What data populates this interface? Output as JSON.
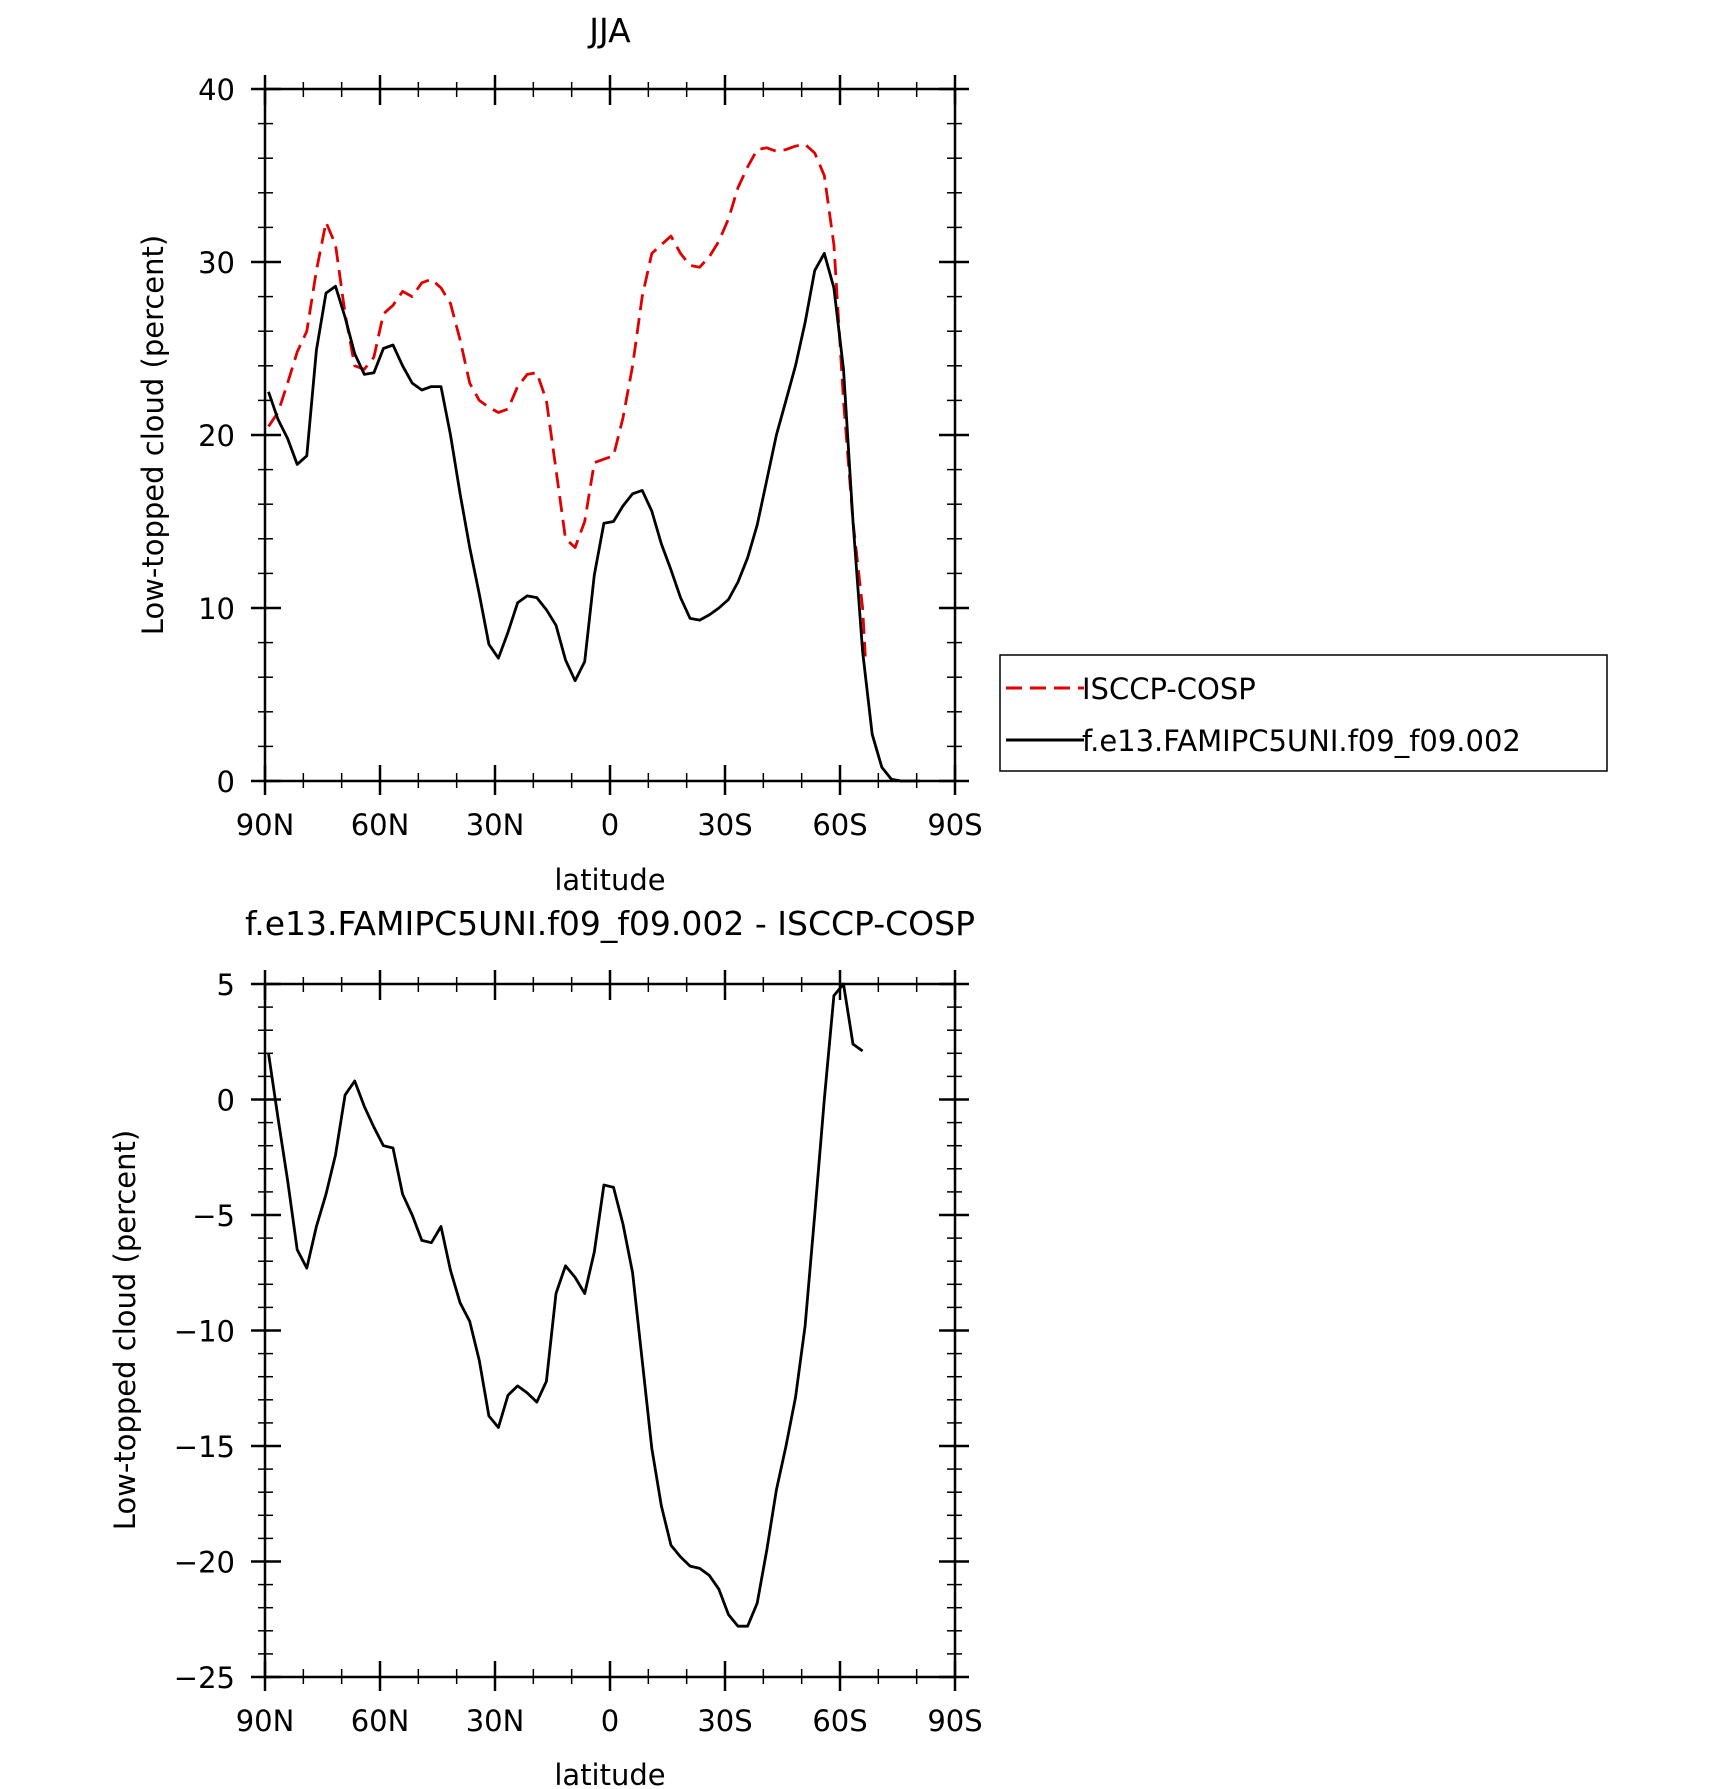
{
  "chart_data": [
    {
      "type": "line",
      "title": "JJA",
      "xlabel": "latitude",
      "ylabel": "Low-topped cloud (percent)",
      "xlim": [
        90,
        -90
      ],
      "ylim": [
        0,
        40
      ],
      "x_ticks": [
        90,
        60,
        30,
        0,
        -30,
        -60,
        -90
      ],
      "x_tick_labels": [
        "90N",
        "60N",
        "30N",
        "0",
        "30S",
        "60S",
        "90S"
      ],
      "y_ticks": [
        0,
        10,
        20,
        30,
        40
      ],
      "y_tick_labels": [
        "0",
        "10",
        "20",
        "30",
        "40"
      ],
      "grid": false,
      "legend": "right",
      "series": [
        {
          "name": "ISCCP-COSP",
          "color": "#e00000",
          "dash": "dashed",
          "x": [
            89.1,
            86.6,
            84.1,
            81.6,
            79.1,
            76.6,
            74.1,
            71.6,
            69.1,
            66.6,
            64.1,
            61.6,
            59.1,
            56.6,
            54.1,
            51.6,
            49.1,
            46.6,
            44.1,
            41.6,
            39.1,
            36.6,
            34.1,
            31.6,
            29.1,
            26.6,
            24.1,
            21.6,
            19.1,
            16.6,
            14.1,
            11.6,
            9.1,
            6.6,
            4.1,
            1.6,
            -0.9,
            -3.4,
            -5.9,
            -8.4,
            -10.9,
            -13.4,
            -15.9,
            -18.4,
            -20.9,
            -23.4,
            -25.9,
            -28.4,
            -30.9,
            -33.4,
            -35.9,
            -38.4,
            -40.9,
            -43.4,
            -45.9,
            -48.4,
            -50.9,
            -53.4,
            -55.9,
            -58.4,
            -60.9,
            -63.4,
            -65.9,
            -66.6
          ],
          "values": [
            20.5,
            21.3,
            23.0,
            24.8,
            26.0,
            29.5,
            32.3,
            31.0,
            27.0,
            24.0,
            23.8,
            24.5,
            27.0,
            27.5,
            28.3,
            28.0,
            28.8,
            29.0,
            28.5,
            27.6,
            25.5,
            23.0,
            22.0,
            21.6,
            21.3,
            21.5,
            22.8,
            23.5,
            23.6,
            22.0,
            18.0,
            14.0,
            13.5,
            15.0,
            18.4,
            18.6,
            18.8,
            21.0,
            24.0,
            28.0,
            30.5,
            31.0,
            31.5,
            30.5,
            29.8,
            29.7,
            30.3,
            31.2,
            32.5,
            34.3,
            35.5,
            36.5,
            36.6,
            36.4,
            36.5,
            36.7,
            36.8,
            36.3,
            35.0,
            31.0,
            22.0,
            15.0,
            10.0,
            7.2
          ]
        },
        {
          "name": "f.e13.FAMIPC5UNI.f09_f09.002",
          "color": "#000000",
          "dash": "solid",
          "x": [
            89.1,
            86.6,
            84.1,
            81.6,
            79.1,
            76.6,
            74.1,
            71.6,
            69.1,
            66.6,
            64.1,
            61.6,
            59.1,
            56.6,
            54.1,
            51.6,
            49.1,
            46.6,
            44.1,
            41.6,
            39.1,
            36.6,
            34.1,
            31.6,
            29.1,
            26.6,
            24.1,
            21.6,
            19.1,
            16.6,
            14.1,
            11.6,
            9.1,
            6.6,
            4.1,
            1.6,
            -0.9,
            -3.4,
            -5.9,
            -8.4,
            -10.9,
            -13.4,
            -15.9,
            -18.4,
            -20.9,
            -23.4,
            -25.9,
            -28.4,
            -30.9,
            -33.4,
            -35.9,
            -38.4,
            -40.9,
            -43.4,
            -45.9,
            -48.4,
            -50.9,
            -53.4,
            -55.9,
            -58.4,
            -60.9,
            -63.4,
            -65.9,
            -68.4,
            -70.9,
            -73.4,
            -75.9,
            -78.4,
            -80.9
          ],
          "values": [
            22.5,
            20.9,
            19.8,
            18.3,
            18.8,
            24.9,
            28.2,
            28.6,
            26.8,
            24.7,
            23.5,
            23.6,
            25.0,
            25.2,
            24.0,
            23.0,
            22.6,
            22.8,
            22.8,
            20.0,
            16.6,
            13.5,
            10.8,
            7.9,
            7.1,
            8.6,
            10.3,
            10.7,
            10.6,
            9.9,
            9.0,
            7.0,
            5.8,
            6.9,
            11.9,
            14.9,
            15.0,
            15.9,
            16.6,
            16.8,
            15.6,
            13.7,
            12.2,
            10.6,
            9.4,
            9.3,
            9.6,
            10.0,
            10.5,
            11.5,
            12.9,
            14.8,
            17.4,
            20.0,
            22.0,
            24.0,
            26.5,
            29.5,
            30.5,
            28.5,
            23.8,
            15.0,
            7.5,
            2.7,
            0.8,
            0.1,
            0.0,
            0.0,
            0.0
          ]
        }
      ]
    },
    {
      "type": "line",
      "title": "f.e13.FAMIPC5UNI.f09_f09.002 - ISCCP-COSP",
      "xlabel": "latitude",
      "ylabel": "Low-topped cloud (percent)",
      "xlim": [
        90,
        -90
      ],
      "ylim": [
        -25,
        5
      ],
      "x_ticks": [
        90,
        60,
        30,
        0,
        -30,
        -60,
        -90
      ],
      "x_tick_labels": [
        "90N",
        "60N",
        "30N",
        "0",
        "30S",
        "60S",
        "90S"
      ],
      "y_ticks": [
        -25,
        -20,
        -15,
        -10,
        -5,
        0,
        5
      ],
      "y_tick_labels": [
        "−25",
        "−20",
        "−15",
        "−10",
        "−5",
        "0",
        "5"
      ],
      "grid": false,
      "series": [
        {
          "color": "#000000",
          "dash": "solid",
          "x": [
            89.1,
            86.6,
            84.1,
            81.6,
            79.1,
            76.6,
            74.1,
            71.6,
            69.1,
            66.6,
            64.1,
            61.6,
            59.1,
            56.6,
            54.1,
            51.6,
            49.1,
            46.6,
            44.1,
            41.6,
            39.1,
            36.6,
            34.1,
            31.6,
            29.1,
            26.6,
            24.1,
            21.6,
            19.1,
            16.6,
            14.1,
            11.6,
            9.1,
            6.6,
            4.1,
            1.6,
            -0.9,
            -3.4,
            -5.9,
            -8.4,
            -10.9,
            -13.4,
            -15.9,
            -18.4,
            -20.9,
            -23.4,
            -25.9,
            -28.4,
            -30.9,
            -33.4,
            -35.9,
            -38.4,
            -40.9,
            -43.4,
            -45.9,
            -48.4,
            -50.9,
            -53.4,
            -55.9,
            -58.4,
            -60.9,
            -63.4,
            -65.9
          ],
          "values": [
            2.0,
            -0.8,
            -3.5,
            -6.5,
            -7.3,
            -5.5,
            -4.1,
            -2.4,
            0.2,
            0.8,
            -0.3,
            -1.2,
            -2.0,
            -2.1,
            -4.1,
            -5.0,
            -6.1,
            -6.2,
            -5.5,
            -7.4,
            -8.8,
            -9.6,
            -11.3,
            -13.7,
            -14.2,
            -12.8,
            -12.4,
            -12.7,
            -13.1,
            -12.2,
            -8.4,
            -7.2,
            -7.7,
            -8.4,
            -6.6,
            -3.7,
            -3.8,
            -5.4,
            -7.5,
            -11.3,
            -15.1,
            -17.6,
            -19.3,
            -19.8,
            -20.2,
            -20.3,
            -20.6,
            -21.2,
            -22.3,
            -22.8,
            -22.8,
            -21.8,
            -19.5,
            -16.9,
            -15.0,
            -12.9,
            -9.8,
            -5.0,
            0.0,
            4.5,
            5.0,
            2.4,
            2.1
          ]
        }
      ]
    }
  ]
}
